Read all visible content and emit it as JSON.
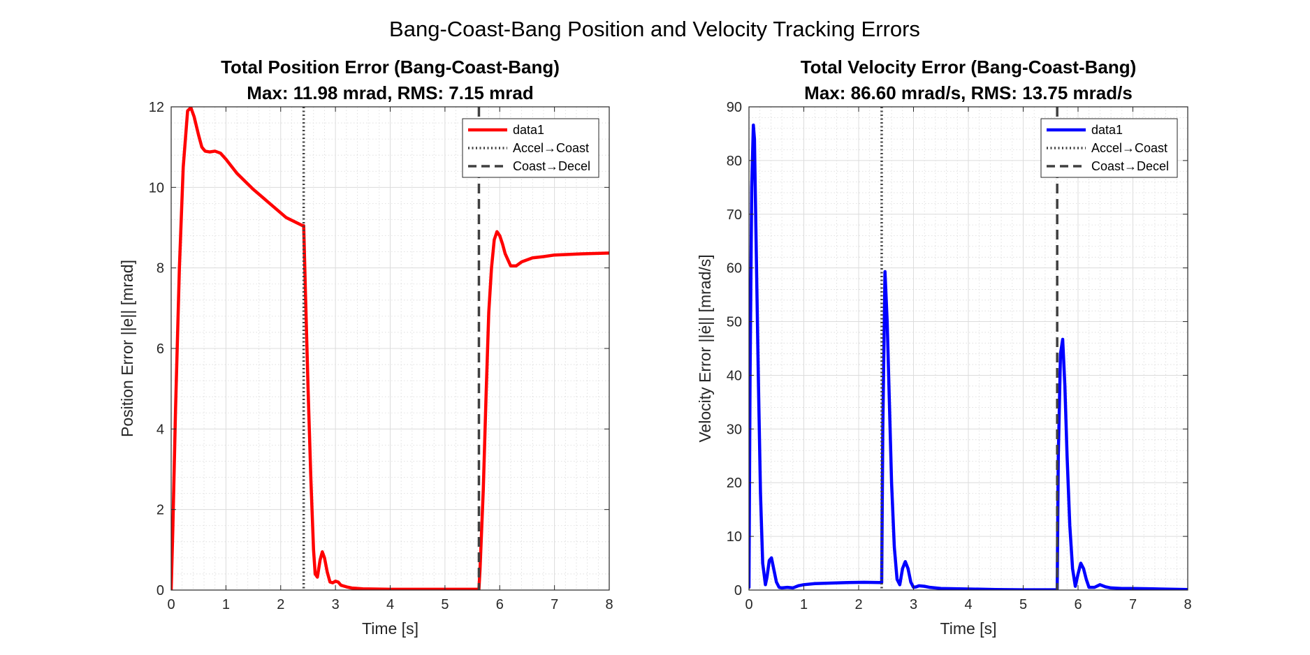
{
  "figure": {
    "suptitle": "Bang-Coast-Bang Position and Velocity Tracking Errors"
  },
  "chart_data": [
    {
      "type": "line",
      "title": "Total Position Error (Bang-Coast-Bang)",
      "subtitle": "Max: 11.98 mrad, RMS: 7.15 mrad",
      "xlabel": "Time [s]",
      "ylabel": "Position Error ||e|| [mrad]",
      "xlim": [
        0,
        8
      ],
      "ylim": [
        0,
        12
      ],
      "xticks": [
        0,
        1,
        2,
        3,
        4,
        5,
        6,
        7,
        8
      ],
      "yticks": [
        0,
        2,
        4,
        6,
        8,
        10,
        12
      ],
      "grid": true,
      "minor_grid": true,
      "legend_position": "top-right",
      "series": [
        {
          "name": "data1",
          "color": "#ff0000",
          "x": [
            0,
            0.03,
            0.08,
            0.15,
            0.22,
            0.3,
            0.36,
            0.42,
            0.5,
            0.56,
            0.62,
            0.7,
            0.8,
            0.9,
            1.0,
            1.2,
            1.5,
            1.8,
            2.1,
            2.4,
            2.42,
            2.45,
            2.5,
            2.55,
            2.6,
            2.63,
            2.67,
            2.72,
            2.76,
            2.8,
            2.85,
            2.9,
            2.95,
            3.0,
            3.05,
            3.1,
            3.2,
            3.3,
            3.5,
            4.0,
            4.5,
            5.0,
            5.5,
            5.62,
            5.64,
            5.7,
            5.75,
            5.8,
            5.85,
            5.9,
            5.95,
            6.0,
            6.05,
            6.1,
            6.2,
            6.3,
            6.4,
            6.6,
            6.8,
            7.0,
            7.5,
            8.0
          ],
          "y": [
            0,
            1.5,
            4.5,
            8.0,
            10.5,
            11.9,
            11.98,
            11.75,
            11.3,
            11.0,
            10.9,
            10.88,
            10.9,
            10.85,
            10.7,
            10.35,
            9.95,
            9.6,
            9.25,
            9.05,
            9.05,
            7.5,
            5.0,
            2.8,
            1.0,
            0.4,
            0.32,
            0.75,
            0.95,
            0.8,
            0.45,
            0.2,
            0.18,
            0.22,
            0.2,
            0.12,
            0.08,
            0.05,
            0.03,
            0.02,
            0.02,
            0.02,
            0.02,
            0.02,
            0.5,
            2.5,
            4.8,
            6.9,
            8.0,
            8.7,
            8.9,
            8.8,
            8.6,
            8.35,
            8.05,
            8.05,
            8.15,
            8.25,
            8.28,
            8.32,
            8.35,
            8.37
          ]
        }
      ],
      "vlines": [
        {
          "name": "Accel→Coast",
          "x": 2.42,
          "style": "dotted",
          "color": "#404040"
        },
        {
          "name": "Coast→Decel",
          "x": 5.62,
          "style": "dashed",
          "color": "#404040"
        }
      ]
    },
    {
      "type": "line",
      "title": "Total Velocity Error (Bang-Coast-Bang)",
      "subtitle": "Max: 86.60 mrad/s, RMS: 13.75 mrad/s",
      "xlabel": "Time [s]",
      "ylabel": "Velocity Error ||ė|| [mrad/s]",
      "xlim": [
        0,
        8
      ],
      "ylim": [
        0,
        90
      ],
      "xticks": [
        0,
        1,
        2,
        3,
        4,
        5,
        6,
        7,
        8
      ],
      "yticks": [
        0,
        10,
        20,
        30,
        40,
        50,
        60,
        70,
        80,
        90
      ],
      "grid": true,
      "minor_grid": true,
      "legend_position": "top-right",
      "series": [
        {
          "name": "data1",
          "color": "#0000ff",
          "x": [
            0,
            0.02,
            0.05,
            0.08,
            0.1,
            0.13,
            0.17,
            0.21,
            0.25,
            0.3,
            0.33,
            0.37,
            0.41,
            0.45,
            0.5,
            0.55,
            0.6,
            0.7,
            0.8,
            0.9,
            1.0,
            1.2,
            1.5,
            1.8,
            2.1,
            2.4,
            2.42,
            2.44,
            2.48,
            2.52,
            2.56,
            2.6,
            2.65,
            2.7,
            2.75,
            2.8,
            2.85,
            2.9,
            2.95,
            3.0,
            3.05,
            3.1,
            3.2,
            3.3,
            3.5,
            4.0,
            4.5,
            5.0,
            5.5,
            5.6,
            5.62,
            5.64,
            5.68,
            5.72,
            5.76,
            5.8,
            5.85,
            5.9,
            5.95,
            6.0,
            6.05,
            6.1,
            6.15,
            6.2,
            6.3,
            6.4,
            6.5,
            6.6,
            6.8,
            7.0,
            7.5,
            8.0
          ],
          "y": [
            0.5,
            40,
            75,
            86.6,
            84,
            65,
            40,
            18,
            5,
            1.0,
            2.5,
            5.5,
            6.0,
            4.0,
            1.5,
            0.5,
            0.4,
            0.5,
            0.4,
            0.8,
            1.0,
            1.2,
            1.3,
            1.4,
            1.45,
            1.4,
            1.4,
            30,
            59.3,
            50,
            35,
            20,
            8,
            2,
            1.0,
            4.0,
            5.3,
            4.0,
            1.5,
            0.5,
            0.6,
            0.8,
            0.7,
            0.5,
            0.3,
            0.2,
            0.1,
            0.05,
            0.05,
            0.05,
            0.05,
            25,
            44,
            46.7,
            38,
            25,
            12,
            4,
            0.7,
            3.0,
            5.0,
            4.0,
            2.0,
            0.5,
            0.5,
            1.0,
            0.6,
            0.4,
            0.3,
            0.3,
            0.2,
            0.1
          ]
        }
      ],
      "vlines": [
        {
          "name": "Accel→Coast",
          "x": 2.42,
          "style": "dotted",
          "color": "#404040"
        },
        {
          "name": "Coast→Decel",
          "x": 5.62,
          "style": "dashed",
          "color": "#404040"
        }
      ]
    }
  ]
}
